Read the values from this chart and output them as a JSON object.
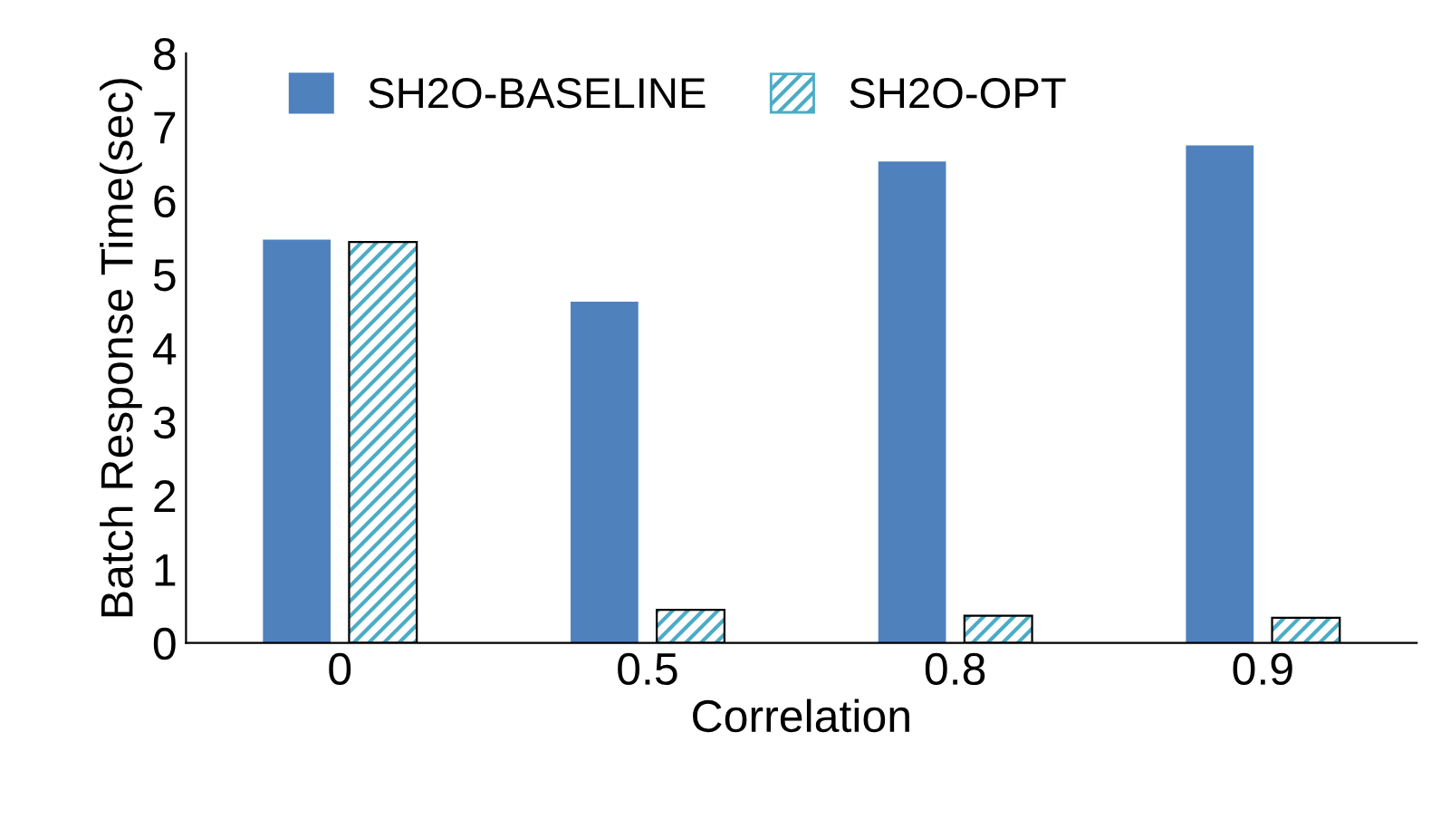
{
  "chart_data": {
    "type": "bar",
    "xlabel": "Correlation",
    "ylabel": "Batch Response Time(sec)",
    "categories": [
      "0",
      "0.5",
      "0.8",
      "0.9"
    ],
    "series": [
      {
        "name": "SH2O-BASELINE",
        "color": "#4f81bd",
        "values": [
          5.47,
          4.63,
          6.53,
          6.75
        ]
      },
      {
        "name": "SH2O-OPT",
        "color": "#4bacc6",
        "values": [
          5.44,
          0.45,
          0.37,
          0.34
        ]
      }
    ],
    "ylim": [
      0,
      8
    ],
    "yticks": [
      0,
      1,
      2,
      3,
      4,
      5,
      6,
      7,
      8
    ],
    "grid": false,
    "legend": "top"
  }
}
